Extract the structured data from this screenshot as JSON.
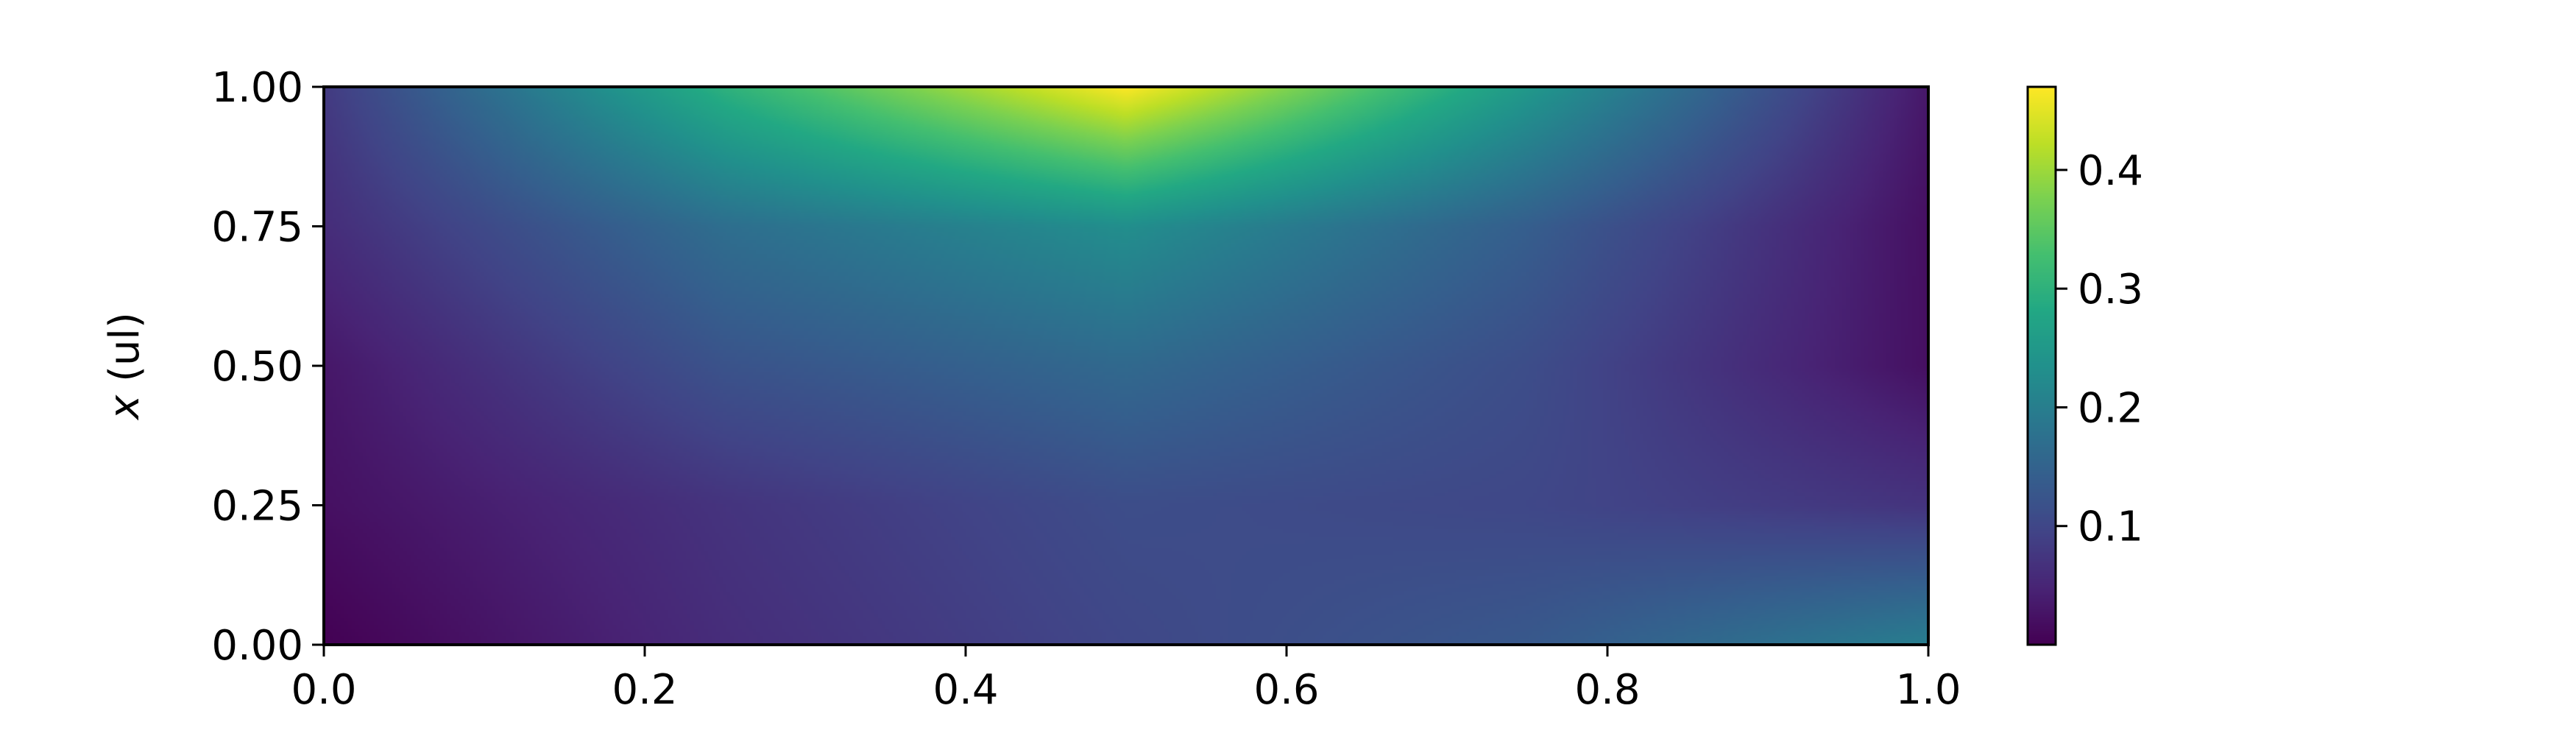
{
  "chart_data": {
    "type": "heatmap",
    "title": "",
    "xlabel": "",
    "ylabel": "x (ul)",
    "ylabel_symbol": "x",
    "ylabel_unit": " (ul)",
    "xlim": [
      0.0,
      1.0
    ],
    "ylim": [
      0.0,
      1.0
    ],
    "x_ticks": [
      "0.0",
      "0.2",
      "0.4",
      "0.6",
      "0.8",
      "1.0"
    ],
    "y_ticks": [
      "0.00",
      "0.25",
      "0.50",
      "0.75",
      "1.00"
    ],
    "grid": false,
    "colormap": "viridis",
    "colorbar": {
      "ticks": [
        "0.1",
        "0.2",
        "0.3",
        "0.4"
      ],
      "range": [
        0.0,
        0.47
      ]
    },
    "x": [
      0.0,
      0.25,
      0.5,
      0.75,
      1.0
    ],
    "y": [
      0.0,
      0.25,
      0.5,
      0.75,
      1.0
    ],
    "z": [
      [
        0.0,
        0.06,
        0.1,
        0.13,
        0.2
      ],
      [
        0.02,
        0.07,
        0.11,
        0.1,
        0.07
      ],
      [
        0.03,
        0.12,
        0.16,
        0.11,
        0.02
      ],
      [
        0.06,
        0.17,
        0.23,
        0.14,
        0.02
      ],
      [
        0.08,
        0.3,
        0.47,
        0.25,
        0.03
      ]
    ]
  }
}
